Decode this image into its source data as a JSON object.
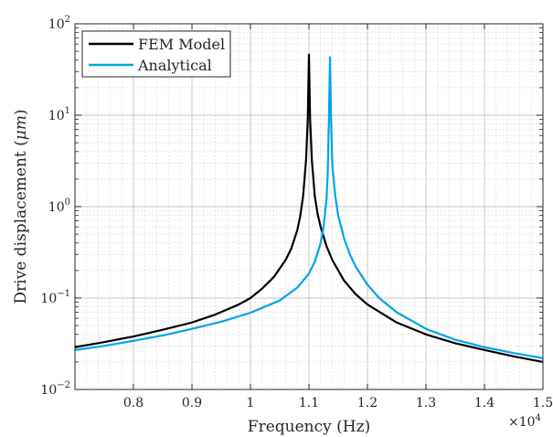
{
  "chart_data": {
    "type": "line",
    "xlabel": "Frequency (Hz)",
    "ylabel_text": "Drive displacement (",
    "ylabel_unit": "μm",
    "ylabel_close": ")",
    "x_exponent_base": "×10",
    "x_exponent_power": "4",
    "xscale": "linear",
    "yscale": "log",
    "xlim": [
      7000,
      15000
    ],
    "ylim": [
      0.01,
      100
    ],
    "xticks": [
      8000,
      9000,
      10000,
      11000,
      12000,
      13000,
      14000,
      15000
    ],
    "xtick_labels": [
      "0.8",
      "0.9",
      "1",
      "1.1",
      "1.2",
      "1.3",
      "1.4",
      "1.5"
    ],
    "yticks": [
      0.01,
      0.1,
      1,
      10,
      100
    ],
    "ytick_labels": [
      {
        "base": "10",
        "exp": "−2"
      },
      {
        "base": "10",
        "exp": "−1"
      },
      {
        "base": "10",
        "exp": "0"
      },
      {
        "base": "10",
        "exp": "1"
      },
      {
        "base": "10",
        "exp": "2"
      }
    ],
    "grid": true,
    "minor_grid": true,
    "legend_position": "top-left",
    "series": [
      {
        "name": "FEM Model",
        "color": "#000000",
        "x": [
          7000,
          7500,
          8000,
          8500,
          9000,
          9400,
          9800,
          10000,
          10200,
          10400,
          10600,
          10700,
          10800,
          10850,
          10900,
          10950,
          10980,
          11000,
          11020,
          11050,
          11100,
          11150,
          11200,
          11300,
          11400,
          11600,
          11800,
          12000,
          12500,
          13000,
          13500,
          14000,
          14500,
          15000
        ],
        "y": [
          0.029,
          0.033,
          0.038,
          0.045,
          0.054,
          0.066,
          0.085,
          0.1,
          0.127,
          0.17,
          0.26,
          0.35,
          0.55,
          0.78,
          1.3,
          3.2,
          9.0,
          46,
          9.0,
          3.2,
          1.3,
          0.82,
          0.6,
          0.37,
          0.26,
          0.155,
          0.11,
          0.085,
          0.054,
          0.04,
          0.032,
          0.027,
          0.023,
          0.02
        ]
      },
      {
        "name": "Analytical",
        "color": "#00a4e8",
        "x": [
          7000,
          7500,
          8000,
          8500,
          9000,
          9500,
          10000,
          10500,
          10800,
          11000,
          11100,
          11200,
          11250,
          11300,
          11320,
          11340,
          11360,
          11380,
          11400,
          11450,
          11500,
          11600,
          11700,
          11800,
          12000,
          12200,
          12500,
          13000,
          13500,
          14000,
          14500,
          15000
        ],
        "y": [
          0.027,
          0.03,
          0.034,
          0.039,
          0.046,
          0.055,
          0.069,
          0.094,
          0.13,
          0.185,
          0.25,
          0.4,
          0.6,
          1.2,
          2.2,
          8.0,
          43,
          8.0,
          2.8,
          1.3,
          0.8,
          0.45,
          0.3,
          0.22,
          0.14,
          0.1,
          0.07,
          0.046,
          0.035,
          0.029,
          0.025,
          0.022
        ]
      }
    ]
  }
}
